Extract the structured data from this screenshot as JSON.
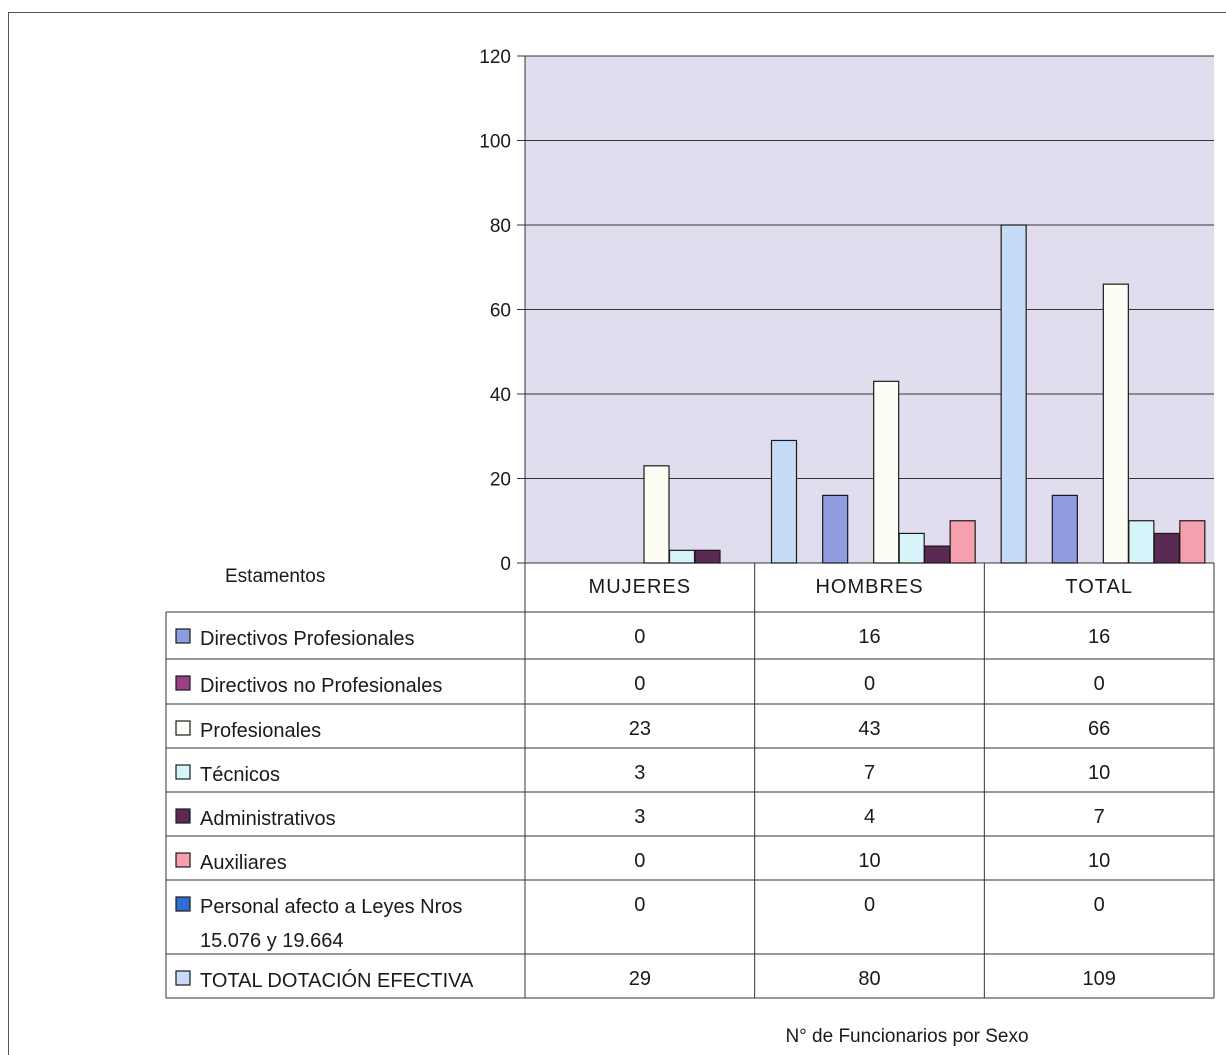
{
  "chart_data": {
    "type": "bar",
    "table_header": "Estamentos",
    "categories": [
      "MUJERES",
      "HOMBRES",
      "TOTAL"
    ],
    "ylim": [
      0,
      120
    ],
    "y_ticks": [
      "0",
      "20",
      "40",
      "60",
      "80",
      "100",
      "120"
    ],
    "grid": true,
    "xlabel": "N° de Funcionarios por Sexo",
    "series": [
      {
        "name": "Directivos Profesionales",
        "label_lines": [
          "Directivos Profesionales"
        ],
        "values": [
          0,
          16,
          16
        ],
        "color": "#8f9de0"
      },
      {
        "name": "Directivos no Profesionales",
        "label_lines": [
          "Directivos no Profesionales"
        ],
        "values": [
          0,
          0,
          0
        ],
        "color": "#9b3f86"
      },
      {
        "name": "Profesionales",
        "label_lines": [
          "Profesionales"
        ],
        "values": [
          23,
          43,
          66
        ],
        "color": "#fdfdf4"
      },
      {
        "name": "Técnicos",
        "label_lines": [
          "Técnicos"
        ],
        "values": [
          3,
          7,
          10
        ],
        "color": "#d8f4fb"
      },
      {
        "name": "Administrativos",
        "label_lines": [
          "Administrativos"
        ],
        "values": [
          3,
          4,
          7
        ],
        "color": "#5a2a54"
      },
      {
        "name": "Auxiliares",
        "label_lines": [
          "Auxiliares"
        ],
        "values": [
          0,
          10,
          10
        ],
        "color": "#f5a0ae"
      },
      {
        "name": "Personal afecto a Leyes Nros 15.076 y 19.664",
        "label_lines": [
          "Personal afecto a Leyes Nros",
          "15.076 y 19.664"
        ],
        "values": [
          0,
          0,
          0
        ],
        "color": "#2e6ecf"
      },
      {
        "name": "TOTAL DOTACIÓN EFECTIVA",
        "label_lines": [
          "TOTAL DOTACIÓN EFECTIVA"
        ],
        "values": [
          29,
          80,
          109
        ],
        "color": "#c6dcf6"
      }
    ],
    "colors": {
      "plot_bg": "#e2dcef",
      "bar_stroke": "#1a1a1a"
    }
  }
}
